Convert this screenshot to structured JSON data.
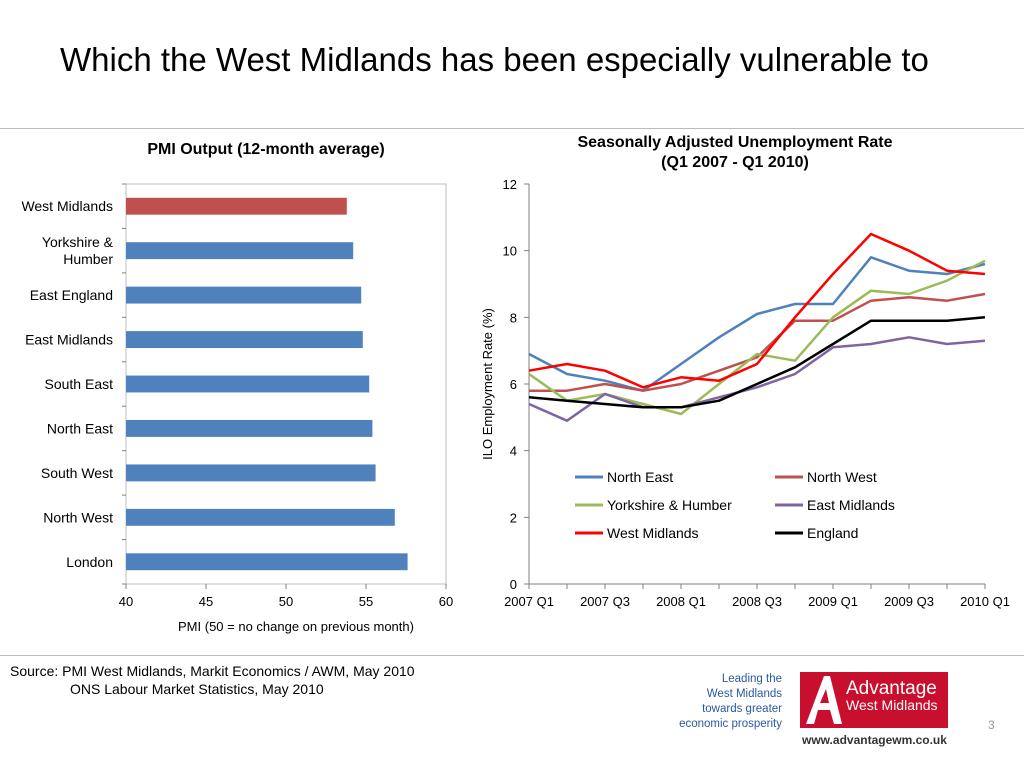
{
  "slide": {
    "title": "Which the West Midlands has been especially vulnerable to",
    "source_line1": "Source: PMI West Midlands, Markit Economics / AWM, May 2010",
    "source_line2": "ONS Labour Market Statistics, May 2010",
    "tagline": [
      "Leading the",
      "West Midlands",
      "towards greater",
      "economic prosperity"
    ],
    "logo_line1": "Advantage",
    "logo_line2": "West Midlands",
    "website": "www.advantagewm.co.uk",
    "page_number": "3"
  },
  "chart_data": [
    {
      "type": "bar",
      "orientation": "horizontal",
      "title": "PMI Output (12-month average)",
      "xlabel": "PMI (50 = no change on previous month)",
      "ylabel": "",
      "xlim": [
        40,
        60
      ],
      "xticks": [
        "40",
        "45",
        "50",
        "55",
        "60"
      ],
      "categories": [
        "West Midlands",
        "Yorkshire & Humber",
        "East England",
        "East Midlands",
        "South East",
        "North East",
        "South West",
        "North West",
        "London"
      ],
      "category_label_lines": [
        [
          "West Midlands"
        ],
        [
          "Yorkshire &",
          "Humber"
        ],
        [
          "East England"
        ],
        [
          "East Midlands"
        ],
        [
          "South East"
        ],
        [
          "North East"
        ],
        [
          "South West"
        ],
        [
          "North West"
        ],
        [
          "London"
        ]
      ],
      "values": [
        53.8,
        54.2,
        54.7,
        54.8,
        55.2,
        55.4,
        55.6,
        56.8,
        57.6
      ],
      "colors": [
        "#c0504d",
        "#4f81bd",
        "#4f81bd",
        "#4f81bd",
        "#4f81bd",
        "#4f81bd",
        "#4f81bd",
        "#4f81bd",
        "#4f81bd"
      ],
      "grid": false,
      "legend": "none"
    },
    {
      "type": "line",
      "title": "Seasonally Adjusted Unemployment Rate (Q1 2007 - Q1 2010)",
      "title_lines": [
        "Seasonally Adjusted Unemployment Rate",
        "(Q1 2007 - Q1 2010)"
      ],
      "xlabel": "",
      "ylabel": "ILO Employment Rate (%)",
      "ylim": [
        0,
        12
      ],
      "yticks": [
        "0",
        "2",
        "4",
        "6",
        "8",
        "10",
        "12"
      ],
      "x": [
        "2007 Q1",
        "2007 Q2",
        "2007 Q3",
        "2007 Q4",
        "2008 Q1",
        "2008 Q2",
        "2008 Q3",
        "2008 Q4",
        "2009 Q1",
        "2009 Q2",
        "2009 Q3",
        "2009 Q4",
        "2010 Q1"
      ],
      "xtick_labels": [
        "2007 Q1",
        "2007 Q3",
        "2008 Q1",
        "2008 Q3",
        "2009 Q1",
        "2009 Q3",
        "2010 Q1"
      ],
      "grid": false,
      "legend": "inside bottom-right, two columns",
      "series": [
        {
          "name": "North East",
          "color": "#4f81bd",
          "values": [
            6.9,
            6.3,
            6.1,
            5.8,
            6.6,
            7.4,
            8.1,
            8.4,
            8.4,
            9.8,
            9.4,
            9.3,
            9.6
          ]
        },
        {
          "name": "North West",
          "color": "#c0504d",
          "values": [
            5.8,
            5.8,
            6.0,
            5.8,
            6.0,
            6.4,
            6.8,
            7.9,
            7.9,
            8.5,
            8.6,
            8.5,
            8.7
          ]
        },
        {
          "name": "Yorkshire & Humber",
          "color": "#9bbb59",
          "values": [
            6.3,
            5.5,
            5.7,
            5.4,
            5.1,
            6.0,
            6.9,
            6.7,
            8.0,
            8.8,
            8.7,
            9.1,
            9.7
          ]
        },
        {
          "name": "East Midlands",
          "color": "#8064a2",
          "values": [
            5.4,
            4.9,
            5.7,
            5.3,
            5.3,
            5.6,
            5.9,
            6.3,
            7.1,
            7.2,
            7.4,
            7.2,
            7.3
          ]
        },
        {
          "name": "West Midlands",
          "color": "#ff0000",
          "values": [
            6.4,
            6.6,
            6.4,
            5.9,
            6.2,
            6.1,
            6.6,
            8.0,
            9.3,
            10.5,
            10.0,
            9.4,
            9.3
          ]
        },
        {
          "name": "England",
          "color": "#000000",
          "values": [
            5.6,
            5.5,
            5.4,
            5.3,
            5.3,
            5.5,
            6.0,
            6.5,
            7.2,
            7.9,
            7.9,
            7.9,
            8.0
          ]
        }
      ]
    }
  ]
}
